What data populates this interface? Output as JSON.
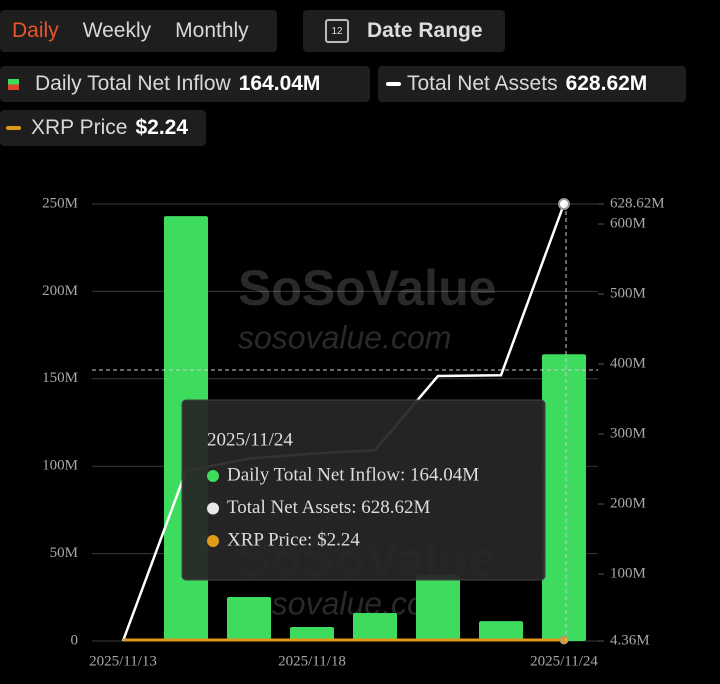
{
  "tabs": [
    "Daily",
    "Weekly",
    "Monthly"
  ],
  "date_range": {
    "icon": "12",
    "label": "Date Range"
  },
  "watermark": {
    "brand": "SoSoValue",
    "url": "sosovalue.com"
  },
  "tooltip": {
    "title": "2025/11/24",
    "rows": [
      "Daily Total Net Inflow: 164.04M",
      "Total Net Assets: 628.62M",
      "XRP Price: $2.24"
    ]
  },
  "chart_data": {
    "type": "bar",
    "categories": [
      "2025/11/13",
      null,
      null,
      "2025/11/18",
      null,
      null,
      null,
      "2025/11/24"
    ],
    "series": [
      {
        "name": "Daily Total Net Inflow",
        "legend_value": "164.04M",
        "color": "#3ddc5f",
        "values": [
          0,
          243.05,
          25.2,
          8.0,
          16.0,
          38.0,
          11.4,
          164.04
        ]
      },
      {
        "name": "Total Net Assets",
        "legend_value": "628.62M",
        "color": "#ffffff",
        "type": "line",
        "axis": "y2",
        "values": [
          4.36,
          247,
          265,
          272,
          277,
          383,
          384,
          628.62
        ]
      },
      {
        "name": "XRP Price",
        "legend_value": "$2.24",
        "color": "#e09a1a"
      }
    ],
    "ylim": [
      0,
      250
    ],
    "yticks": [
      0,
      {
        "value": 50,
        "label": "50M"
      },
      {
        "value": 100,
        "label": "100M"
      },
      {
        "value": 150,
        "label": "150M"
      },
      {
        "value": 200,
        "label": "200M"
      },
      {
        "value": 250,
        "label": "250M"
      }
    ],
    "y2lim": [
      4.36,
      628.62
    ],
    "y2ticks": [
      {
        "value": 4.36,
        "label": "4.36M"
      },
      {
        "value": 100,
        "label": "100M"
      },
      {
        "value": 200,
        "label": "200M"
      },
      {
        "value": 300,
        "label": "300M"
      },
      {
        "value": 400,
        "label": "400M"
      },
      {
        "value": 500,
        "label": "500M"
      },
      {
        "value": 600,
        "label": "600M"
      },
      {
        "value": 628.62,
        "label": "628.62M"
      }
    ],
    "grid": true
  }
}
